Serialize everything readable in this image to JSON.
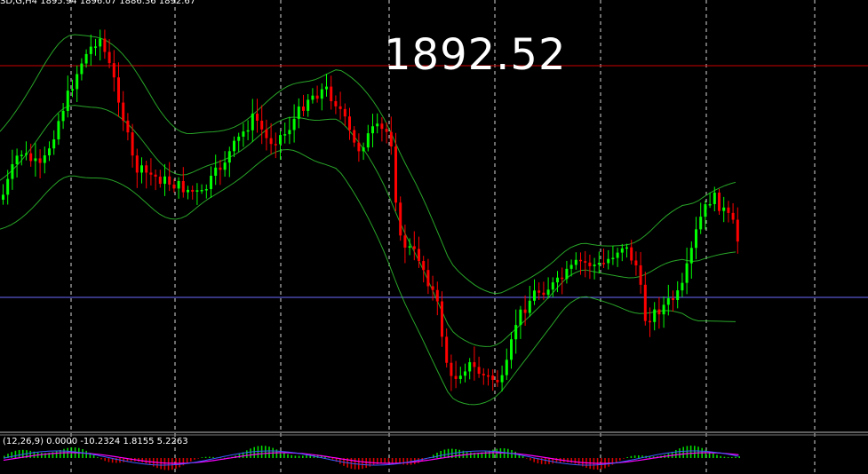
{
  "header": {
    "text": "SD,G,H4  1895.94  1896.07  1886.36  1892.67"
  },
  "price_label": "1892.52",
  "macd": {
    "label": "(12,26,9) 0.0000 -10.2324 1.8155 5.2263"
  },
  "colors": {
    "background": "#000000",
    "bull": "#00ff00",
    "bear": "#ff0000",
    "bands": "#32cd32",
    "grid": "#ffffff",
    "red_line": "#cc0000",
    "blue_line": "#6a6aff",
    "macd_signal": "#ff00ff",
    "macd_line": "#3a5aff"
  },
  "icons": [
    "chart-grid",
    "price-level-line"
  ]
}
